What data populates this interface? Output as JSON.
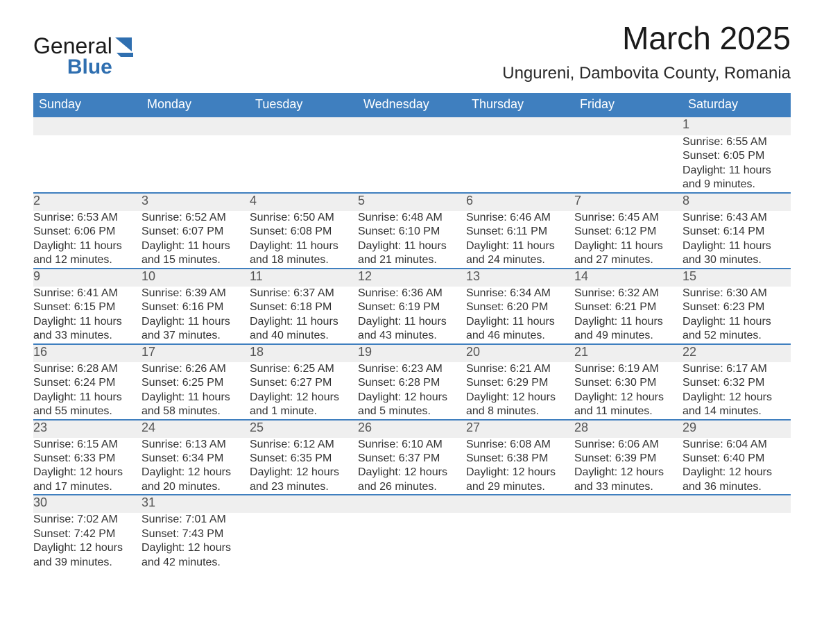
{
  "brand": {
    "name_part1": "General",
    "name_part2": "Blue",
    "logo_color": "#2f6fb0",
    "text_color": "#1a1a1a"
  },
  "title": {
    "month_year": "March 2025",
    "location": "Ungureni, Dambovita County, Romania",
    "title_fontsize": 46,
    "location_fontsize": 24
  },
  "colors": {
    "header_bg": "#3f7fbf",
    "header_text": "#ffffff",
    "daynum_bg": "#efefef",
    "daynum_text": "#555555",
    "row_border": "#3f7fbf",
    "body_text": "#333333",
    "page_bg": "#ffffff"
  },
  "typography": {
    "header_fontsize": 18,
    "daynum_fontsize": 18,
    "detail_fontsize": 16,
    "font_family": "Arial"
  },
  "day_headers": [
    "Sunday",
    "Monday",
    "Tuesday",
    "Wednesday",
    "Thursday",
    "Friday",
    "Saturday"
  ],
  "weeks": [
    [
      null,
      null,
      null,
      null,
      null,
      null,
      {
        "n": "1",
        "sunrise": "Sunrise: 6:55 AM",
        "sunset": "Sunset: 6:05 PM",
        "daylight": "Daylight: 11 hours and 9 minutes."
      }
    ],
    [
      {
        "n": "2",
        "sunrise": "Sunrise: 6:53 AM",
        "sunset": "Sunset: 6:06 PM",
        "daylight": "Daylight: 11 hours and 12 minutes."
      },
      {
        "n": "3",
        "sunrise": "Sunrise: 6:52 AM",
        "sunset": "Sunset: 6:07 PM",
        "daylight": "Daylight: 11 hours and 15 minutes."
      },
      {
        "n": "4",
        "sunrise": "Sunrise: 6:50 AM",
        "sunset": "Sunset: 6:08 PM",
        "daylight": "Daylight: 11 hours and 18 minutes."
      },
      {
        "n": "5",
        "sunrise": "Sunrise: 6:48 AM",
        "sunset": "Sunset: 6:10 PM",
        "daylight": "Daylight: 11 hours and 21 minutes."
      },
      {
        "n": "6",
        "sunrise": "Sunrise: 6:46 AM",
        "sunset": "Sunset: 6:11 PM",
        "daylight": "Daylight: 11 hours and 24 minutes."
      },
      {
        "n": "7",
        "sunrise": "Sunrise: 6:45 AM",
        "sunset": "Sunset: 6:12 PM",
        "daylight": "Daylight: 11 hours and 27 minutes."
      },
      {
        "n": "8",
        "sunrise": "Sunrise: 6:43 AM",
        "sunset": "Sunset: 6:14 PM",
        "daylight": "Daylight: 11 hours and 30 minutes."
      }
    ],
    [
      {
        "n": "9",
        "sunrise": "Sunrise: 6:41 AM",
        "sunset": "Sunset: 6:15 PM",
        "daylight": "Daylight: 11 hours and 33 minutes."
      },
      {
        "n": "10",
        "sunrise": "Sunrise: 6:39 AM",
        "sunset": "Sunset: 6:16 PM",
        "daylight": "Daylight: 11 hours and 37 minutes."
      },
      {
        "n": "11",
        "sunrise": "Sunrise: 6:37 AM",
        "sunset": "Sunset: 6:18 PM",
        "daylight": "Daylight: 11 hours and 40 minutes."
      },
      {
        "n": "12",
        "sunrise": "Sunrise: 6:36 AM",
        "sunset": "Sunset: 6:19 PM",
        "daylight": "Daylight: 11 hours and 43 minutes."
      },
      {
        "n": "13",
        "sunrise": "Sunrise: 6:34 AM",
        "sunset": "Sunset: 6:20 PM",
        "daylight": "Daylight: 11 hours and 46 minutes."
      },
      {
        "n": "14",
        "sunrise": "Sunrise: 6:32 AM",
        "sunset": "Sunset: 6:21 PM",
        "daylight": "Daylight: 11 hours and 49 minutes."
      },
      {
        "n": "15",
        "sunrise": "Sunrise: 6:30 AM",
        "sunset": "Sunset: 6:23 PM",
        "daylight": "Daylight: 11 hours and 52 minutes."
      }
    ],
    [
      {
        "n": "16",
        "sunrise": "Sunrise: 6:28 AM",
        "sunset": "Sunset: 6:24 PM",
        "daylight": "Daylight: 11 hours and 55 minutes."
      },
      {
        "n": "17",
        "sunrise": "Sunrise: 6:26 AM",
        "sunset": "Sunset: 6:25 PM",
        "daylight": "Daylight: 11 hours and 58 minutes."
      },
      {
        "n": "18",
        "sunrise": "Sunrise: 6:25 AM",
        "sunset": "Sunset: 6:27 PM",
        "daylight": "Daylight: 12 hours and 1 minute."
      },
      {
        "n": "19",
        "sunrise": "Sunrise: 6:23 AM",
        "sunset": "Sunset: 6:28 PM",
        "daylight": "Daylight: 12 hours and 5 minutes."
      },
      {
        "n": "20",
        "sunrise": "Sunrise: 6:21 AM",
        "sunset": "Sunset: 6:29 PM",
        "daylight": "Daylight: 12 hours and 8 minutes."
      },
      {
        "n": "21",
        "sunrise": "Sunrise: 6:19 AM",
        "sunset": "Sunset: 6:30 PM",
        "daylight": "Daylight: 12 hours and 11 minutes."
      },
      {
        "n": "22",
        "sunrise": "Sunrise: 6:17 AM",
        "sunset": "Sunset: 6:32 PM",
        "daylight": "Daylight: 12 hours and 14 minutes."
      }
    ],
    [
      {
        "n": "23",
        "sunrise": "Sunrise: 6:15 AM",
        "sunset": "Sunset: 6:33 PM",
        "daylight": "Daylight: 12 hours and 17 minutes."
      },
      {
        "n": "24",
        "sunrise": "Sunrise: 6:13 AM",
        "sunset": "Sunset: 6:34 PM",
        "daylight": "Daylight: 12 hours and 20 minutes."
      },
      {
        "n": "25",
        "sunrise": "Sunrise: 6:12 AM",
        "sunset": "Sunset: 6:35 PM",
        "daylight": "Daylight: 12 hours and 23 minutes."
      },
      {
        "n": "26",
        "sunrise": "Sunrise: 6:10 AM",
        "sunset": "Sunset: 6:37 PM",
        "daylight": "Daylight: 12 hours and 26 minutes."
      },
      {
        "n": "27",
        "sunrise": "Sunrise: 6:08 AM",
        "sunset": "Sunset: 6:38 PM",
        "daylight": "Daylight: 12 hours and 29 minutes."
      },
      {
        "n": "28",
        "sunrise": "Sunrise: 6:06 AM",
        "sunset": "Sunset: 6:39 PM",
        "daylight": "Daylight: 12 hours and 33 minutes."
      },
      {
        "n": "29",
        "sunrise": "Sunrise: 6:04 AM",
        "sunset": "Sunset: 6:40 PM",
        "daylight": "Daylight: 12 hours and 36 minutes."
      }
    ],
    [
      {
        "n": "30",
        "sunrise": "Sunrise: 7:02 AM",
        "sunset": "Sunset: 7:42 PM",
        "daylight": "Daylight: 12 hours and 39 minutes."
      },
      {
        "n": "31",
        "sunrise": "Sunrise: 7:01 AM",
        "sunset": "Sunset: 7:43 PM",
        "daylight": "Daylight: 12 hours and 42 minutes."
      },
      null,
      null,
      null,
      null,
      null
    ]
  ]
}
